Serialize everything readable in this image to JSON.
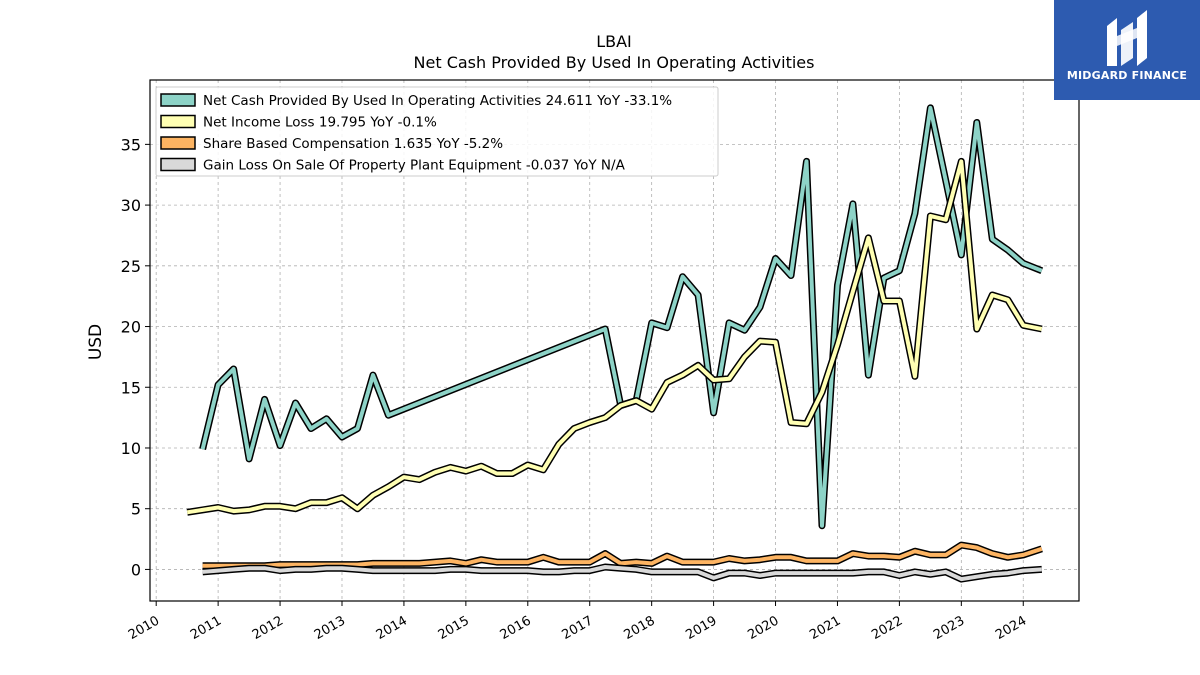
{
  "brand": {
    "name": "MIDGARD FINANCE",
    "bg": "#2d5bb0"
  },
  "chart_data": {
    "type": "line",
    "title": "LBAI",
    "subtitle": "Net Cash Provided By Used In Operating Activities",
    "ylabel": "USD",
    "xlabel": "",
    "xlim": [
      2009.9,
      2024.9
    ],
    "ylim": [
      -2.6,
      40.3
    ],
    "yticks": [
      0,
      5,
      10,
      15,
      20,
      25,
      30,
      35
    ],
    "xticks": [
      "2010",
      "2011",
      "2012",
      "2013",
      "2014",
      "2015",
      "2016",
      "2017",
      "2018",
      "2019",
      "2020",
      "2021",
      "2022",
      "2023",
      "2024"
    ],
    "grid": true,
    "legend_position": "top-left",
    "series": [
      {
        "name": "Net Cash Provided By Used In Operating Activities",
        "legend": "Net Cash Provided By Used In Operating Activities  24.611 YoY -33.1%",
        "color": "#8dd3c7",
        "x": [
          2010.75,
          2011.0,
          2011.25,
          2011.5,
          2011.75,
          2012.0,
          2012.25,
          2012.5,
          2012.75,
          2013.0,
          2013.25,
          2013.5,
          2013.75,
          2017.25,
          2017.5,
          2017.75,
          2018.0,
          2018.25,
          2018.5,
          2018.75,
          2019.0,
          2019.25,
          2019.5,
          2019.75,
          2020.0,
          2020.25,
          2020.5,
          2020.75,
          2021.0,
          2021.25,
          2021.5,
          2021.75,
          2022.0,
          2022.25,
          2022.5,
          2022.75,
          2023.0,
          2023.25,
          2023.5,
          2023.75,
          2024.0,
          2024.3
        ],
        "y": [
          9.9,
          15.2,
          16.5,
          9.1,
          14.0,
          10.2,
          13.7,
          11.6,
          12.4,
          10.9,
          11.6,
          16.0,
          12.7,
          19.8,
          13.5,
          13.9,
          20.3,
          19.9,
          24.1,
          22.6,
          12.9,
          20.3,
          19.7,
          21.6,
          25.6,
          24.2,
          33.6,
          3.6,
          23.4,
          30.1,
          16.0,
          24.0,
          24.6,
          29.3,
          38.0,
          32.0,
          25.9,
          36.8,
          27.2,
          26.3,
          25.2,
          24.6
        ]
      },
      {
        "name": "Net Income Loss",
        "legend": "Net Income Loss  19.795 YoY -0.1%",
        "color": "#ffffb3",
        "x": [
          2010.5,
          2010.75,
          2011.0,
          2011.25,
          2011.5,
          2011.75,
          2012.0,
          2012.25,
          2012.5,
          2012.75,
          2013.0,
          2013.25,
          2013.5,
          2013.75,
          2014.0,
          2014.25,
          2014.5,
          2014.75,
          2015.0,
          2015.25,
          2015.5,
          2015.75,
          2016.0,
          2016.25,
          2016.5,
          2016.75,
          2017.0,
          2017.25,
          2017.5,
          2017.75,
          2018.0,
          2018.25,
          2018.5,
          2018.75,
          2019.0,
          2019.25,
          2019.5,
          2019.75,
          2020.0,
          2020.25,
          2020.5,
          2020.75,
          2021.0,
          2021.25,
          2021.5,
          2021.75,
          2022.0,
          2022.25,
          2022.5,
          2022.75,
          2023.0,
          2023.25,
          2023.5,
          2023.75,
          2024.0,
          2024.3
        ],
        "y": [
          4.7,
          4.9,
          5.1,
          4.8,
          4.9,
          5.2,
          5.2,
          5.0,
          5.5,
          5.5,
          5.9,
          5.0,
          6.1,
          6.8,
          7.6,
          7.4,
          8.0,
          8.4,
          8.1,
          8.5,
          7.9,
          7.9,
          8.6,
          8.2,
          10.3,
          11.6,
          12.1,
          12.5,
          13.5,
          13.9,
          13.2,
          15.4,
          16.0,
          16.8,
          15.6,
          15.7,
          17.5,
          18.8,
          18.7,
          12.1,
          12.0,
          14.6,
          18.5,
          22.9,
          27.3,
          22.1,
          22.1,
          15.9,
          29.1,
          28.8,
          33.6,
          19.8,
          22.6,
          22.2,
          20.1,
          19.8
        ]
      },
      {
        "name": "Share Based Compensation",
        "legend": "Share Based Compensation  1.635 YoY -5.2%",
        "color": "#fdb462",
        "x": [
          2010.75,
          2011.0,
          2011.25,
          2011.5,
          2011.75,
          2012.0,
          2012.25,
          2012.5,
          2012.75,
          2013.0,
          2013.25,
          2013.5,
          2013.75,
          2014.0,
          2014.25,
          2014.5,
          2014.75,
          2015.0,
          2015.25,
          2015.5,
          2015.75,
          2016.0,
          2016.25,
          2016.5,
          2016.75,
          2017.0,
          2017.25,
          2017.5,
          2017.75,
          2018.0,
          2018.25,
          2018.5,
          2018.75,
          2019.0,
          2019.25,
          2019.5,
          2019.75,
          2020.0,
          2020.25,
          2020.5,
          2020.75,
          2021.0,
          2021.25,
          2021.5,
          2021.75,
          2022.0,
          2022.25,
          2022.5,
          2022.75,
          2023.0,
          2023.25,
          2023.5,
          2023.75,
          2024.0,
          2024.3
        ],
        "y": [
          0.3,
          0.3,
          0.3,
          0.3,
          0.3,
          0.4,
          0.4,
          0.4,
          0.4,
          0.4,
          0.4,
          0.5,
          0.5,
          0.5,
          0.5,
          0.6,
          0.7,
          0.5,
          0.8,
          0.6,
          0.6,
          0.6,
          1.0,
          0.6,
          0.6,
          0.6,
          1.3,
          0.5,
          0.6,
          0.5,
          1.1,
          0.6,
          0.6,
          0.6,
          0.9,
          0.7,
          0.8,
          1.0,
          1.0,
          0.7,
          0.7,
          0.7,
          1.3,
          1.1,
          1.1,
          1.0,
          1.5,
          1.2,
          1.2,
          2.0,
          1.8,
          1.3,
          1.0,
          1.2,
          1.7
        ]
      },
      {
        "name": "Gain Loss On Sale Of Property Plant Equipment",
        "legend": "Gain Loss On Sale Of Property Plant Equipment  -0.037 YoY N/A",
        "color": "#d9d9d9",
        "x": [
          2010.75,
          2011.0,
          2011.25,
          2011.5,
          2011.75,
          2012.0,
          2012.25,
          2012.5,
          2012.75,
          2013.0,
          2013.25,
          2013.5,
          2013.75,
          2014.0,
          2014.25,
          2014.5,
          2014.75,
          2015.0,
          2015.25,
          2015.5,
          2015.75,
          2016.0,
          2016.25,
          2016.5,
          2016.75,
          2017.0,
          2017.25,
          2017.5,
          2017.75,
          2018.0,
          2018.25,
          2018.5,
          2018.75,
          2019.0,
          2019.25,
          2019.5,
          2019.75,
          2020.0,
          2020.25,
          2020.5,
          2020.75,
          2021.0,
          2021.25,
          2021.5,
          2021.75,
          2022.0,
          2022.25,
          2022.5,
          2022.75,
          2023.0,
          2023.25,
          2023.5,
          2023.75,
          2024.0,
          2024.3
        ],
        "y": [
          -0.2,
          -0.1,
          0.0,
          0.1,
          0.1,
          -0.1,
          0.0,
          0.0,
          0.1,
          0.1,
          0.0,
          -0.1,
          -0.1,
          -0.1,
          -0.1,
          -0.1,
          0.0,
          0.0,
          -0.1,
          -0.1,
          -0.1,
          -0.1,
          -0.2,
          -0.2,
          -0.1,
          -0.1,
          0.2,
          0.1,
          0.0,
          -0.2,
          -0.2,
          -0.2,
          -0.2,
          -0.7,
          -0.3,
          -0.3,
          -0.5,
          -0.3,
          -0.3,
          -0.3,
          -0.3,
          -0.3,
          -0.3,
          -0.2,
          -0.2,
          -0.5,
          -0.2,
          -0.4,
          -0.2,
          -0.8,
          -0.6,
          -0.4,
          -0.3,
          -0.1,
          0.0
        ]
      }
    ]
  }
}
